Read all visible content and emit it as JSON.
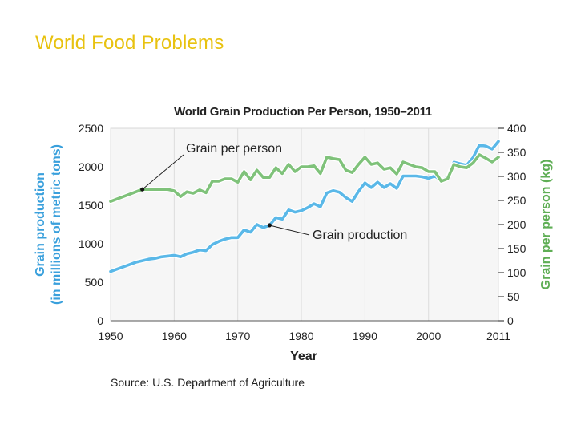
{
  "slide": {
    "title": "World Food Problems"
  },
  "colors": {
    "title": "#e8c210",
    "production": "#5ab8e8",
    "per_person": "#7fc27a",
    "left_axis_label": "#3aa0dc",
    "right_axis_label": "#5fae55"
  },
  "chart_data": {
    "type": "line",
    "title": "World Grain Production Per Person, 1950–2011",
    "xlabel": "Year",
    "ylabel_left": "Grain production\n(in millions of metric tons)",
    "ylabel_right": "Grain per person (kg)",
    "xlim": [
      1950,
      2011
    ],
    "ylim_left": [
      0,
      2500
    ],
    "ylim_right": [
      0,
      400
    ],
    "x_ticks": [
      1950,
      1960,
      1970,
      1980,
      1990,
      2000,
      2011
    ],
    "y_ticks_left": [
      0,
      500,
      1000,
      1500,
      2000,
      2500
    ],
    "y_ticks_right": [
      0,
      50,
      100,
      150,
      200,
      250,
      300,
      350,
      400
    ],
    "source": "Source: U.S. Department of Agriculture",
    "series": [
      {
        "name": "Grain production",
        "axis": "left",
        "x": [
          1950,
          1951,
          1952,
          1953,
          1954,
          1955,
          1956,
          1957,
          1958,
          1959,
          1960,
          1961,
          1962,
          1963,
          1964,
          1965,
          1966,
          1967,
          1968,
          1969,
          1970,
          1971,
          1972,
          1973,
          1974,
          1975,
          1976,
          1977,
          1978,
          1979,
          1980,
          1981,
          1982,
          1983,
          1984,
          1985,
          1986,
          1987,
          1988,
          1989,
          1990,
          1991,
          1992,
          1993,
          1994,
          1995,
          1996,
          1997,
          1998,
          1999,
          2000,
          2001,
          2002,
          2003,
          2004,
          2005,
          2006,
          2007,
          2008,
          2009,
          2010,
          2011
        ],
        "values": [
          640,
          670,
          700,
          730,
          760,
          780,
          800,
          810,
          830,
          840,
          850,
          830,
          870,
          890,
          920,
          910,
          990,
          1030,
          1060,
          1080,
          1080,
          1180,
          1150,
          1250,
          1210,
          1240,
          1340,
          1320,
          1440,
          1410,
          1430,
          1470,
          1520,
          1480,
          1660,
          1690,
          1670,
          1600,
          1550,
          1680,
          1790,
          1730,
          1800,
          1730,
          1780,
          1720,
          1880,
          1880,
          1880,
          1870,
          1850,
          1880,
          1820,
          1860,
          2060,
          2040,
          2020,
          2120,
          2280,
          2270,
          2230,
          2330
        ]
      },
      {
        "name": "Grain per person",
        "axis": "right",
        "x": [
          1950,
          1951,
          1952,
          1953,
          1954,
          1955,
          1956,
          1957,
          1958,
          1959,
          1960,
          1961,
          1962,
          1963,
          1964,
          1965,
          1966,
          1967,
          1968,
          1969,
          1970,
          1971,
          1972,
          1973,
          1974,
          1975,
          1976,
          1977,
          1978,
          1979,
          1980,
          1981,
          1982,
          1983,
          1984,
          1985,
          1986,
          1987,
          1988,
          1989,
          1990,
          1991,
          1992,
          1993,
          1994,
          1995,
          1996,
          1997,
          1998,
          1999,
          2000,
          2001,
          2002,
          2003,
          2004,
          2005,
          2006,
          2007,
          2008,
          2009,
          2010,
          2011
        ],
        "values": [
          248,
          253,
          258,
          263,
          268,
          273,
          273,
          273,
          273,
          273,
          270,
          258,
          268,
          265,
          272,
          266,
          290,
          290,
          295,
          295,
          288,
          310,
          293,
          313,
          298,
          298,
          318,
          306,
          325,
          310,
          320,
          320,
          322,
          306,
          340,
          337,
          335,
          313,
          308,
          325,
          340,
          325,
          328,
          315,
          318,
          305,
          330,
          325,
          320,
          318,
          310,
          310,
          290,
          295,
          325,
          320,
          318,
          328,
          345,
          338,
          330,
          340
        ]
      }
    ],
    "annotations": [
      {
        "text": "Grain per person",
        "series": "Grain per person",
        "x": 1955
      },
      {
        "text": "Grain production",
        "series": "Grain production",
        "x": 1975
      }
    ]
  }
}
